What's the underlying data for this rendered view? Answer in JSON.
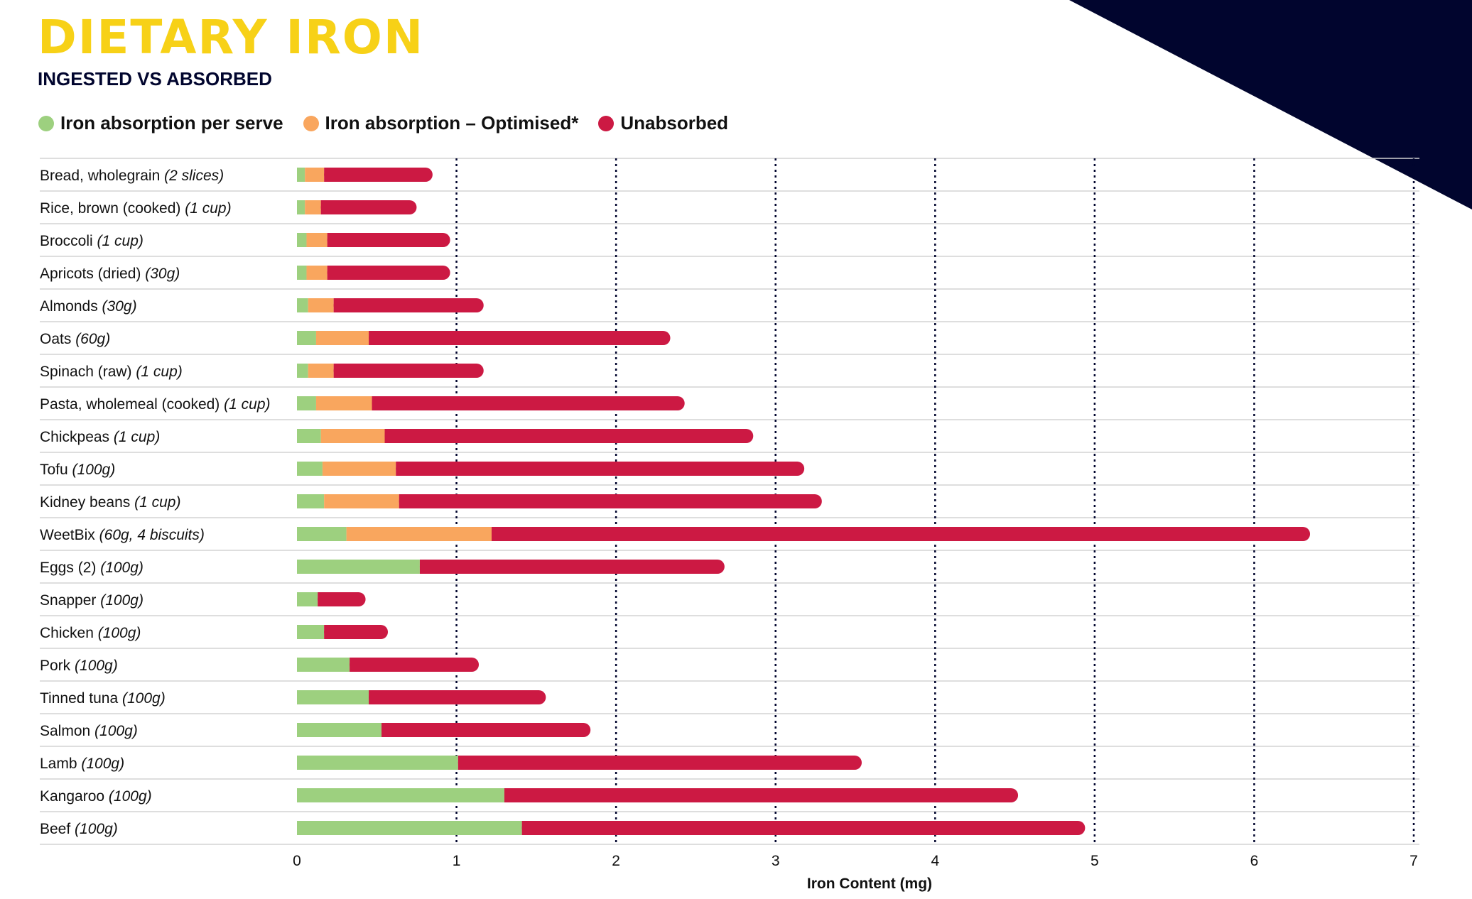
{
  "header": {
    "title": "DIETARY IRON",
    "subtitle": "INGESTED VS ABSORBED"
  },
  "colors": {
    "title": "#f7d117",
    "navy": "#01052e",
    "absorbed": "#9dd07f",
    "optimised": "#f9a65e",
    "unabsorbed": "#cc1943",
    "grid": "#d3d3d3",
    "text": "#111111"
  },
  "legend": [
    {
      "label": "Iron absorption per serve",
      "color": "#9dd07f"
    },
    {
      "label": "Iron absorption – Optimised*",
      "color": "#f9a65e"
    },
    {
      "label": "Unabsorbed",
      "color": "#cc1943"
    }
  ],
  "chart_data": {
    "type": "bar",
    "orientation": "horizontal",
    "stacked": true,
    "xlabel": "Iron Content (mg)",
    "xlim": [
      0,
      7
    ],
    "xticks": [
      "0",
      "1",
      "2",
      "3",
      "4",
      "5",
      "6",
      "7"
    ],
    "grid": "dotted vertical lines",
    "categories": [
      {
        "name": "Bread, wholegrain",
        "serve": "(2 slices)"
      },
      {
        "name": "Rice, brown (cooked)",
        "serve": "(1 cup)"
      },
      {
        "name": "Broccoli",
        "serve": "(1 cup)"
      },
      {
        "name": "Apricots (dried)",
        "serve": "(30g)"
      },
      {
        "name": "Almonds",
        "serve": "(30g)"
      },
      {
        "name": "Oats",
        "serve": "(60g)"
      },
      {
        "name": "Spinach (raw)",
        "serve": "(1 cup)"
      },
      {
        "name": "Pasta, wholemeal (cooked)",
        "serve": "(1 cup)"
      },
      {
        "name": "Chickpeas",
        "serve": "(1 cup)"
      },
      {
        "name": "Tofu",
        "serve": "(100g)"
      },
      {
        "name": "Kidney beans",
        "serve": "(1 cup)"
      },
      {
        "name": "WeetBix",
        "serve": "(60g, 4 biscuits)"
      },
      {
        "name": "Eggs (2)",
        "serve": "(100g)"
      },
      {
        "name": "Snapper",
        "serve": "(100g)"
      },
      {
        "name": "Chicken",
        "serve": "(100g)"
      },
      {
        "name": "Pork",
        "serve": "(100g)"
      },
      {
        "name": "Tinned tuna",
        "serve": "(100g)"
      },
      {
        "name": "Salmon",
        "serve": "(100g)"
      },
      {
        "name": "Lamb",
        "serve": "(100g)"
      },
      {
        "name": "Kangaroo",
        "serve": "(100g)"
      },
      {
        "name": "Beef",
        "serve": "(100g)"
      }
    ],
    "series": [
      {
        "name": "Iron absorption per serve",
        "values": [
          0.05,
          0.05,
          0.06,
          0.06,
          0.07,
          0.12,
          0.07,
          0.12,
          0.15,
          0.16,
          0.17,
          0.31,
          0.77,
          0.13,
          0.17,
          0.33,
          0.45,
          0.53,
          1.01,
          1.3,
          1.41
        ]
      },
      {
        "name": "Iron absorption – Optimised*",
        "values": [
          0.12,
          0.1,
          0.13,
          0.13,
          0.16,
          0.33,
          0.16,
          0.35,
          0.4,
          0.46,
          0.47,
          0.91,
          0,
          0,
          0,
          0,
          0,
          0,
          0,
          0,
          0
        ]
      },
      {
        "name": "Unabsorbed",
        "values": [
          0.68,
          0.6,
          0.77,
          0.77,
          0.94,
          1.89,
          0.94,
          1.96,
          2.31,
          2.56,
          2.65,
          5.13,
          1.91,
          0.3,
          0.4,
          0.81,
          1.11,
          1.31,
          2.53,
          3.22,
          3.53
        ]
      }
    ]
  }
}
